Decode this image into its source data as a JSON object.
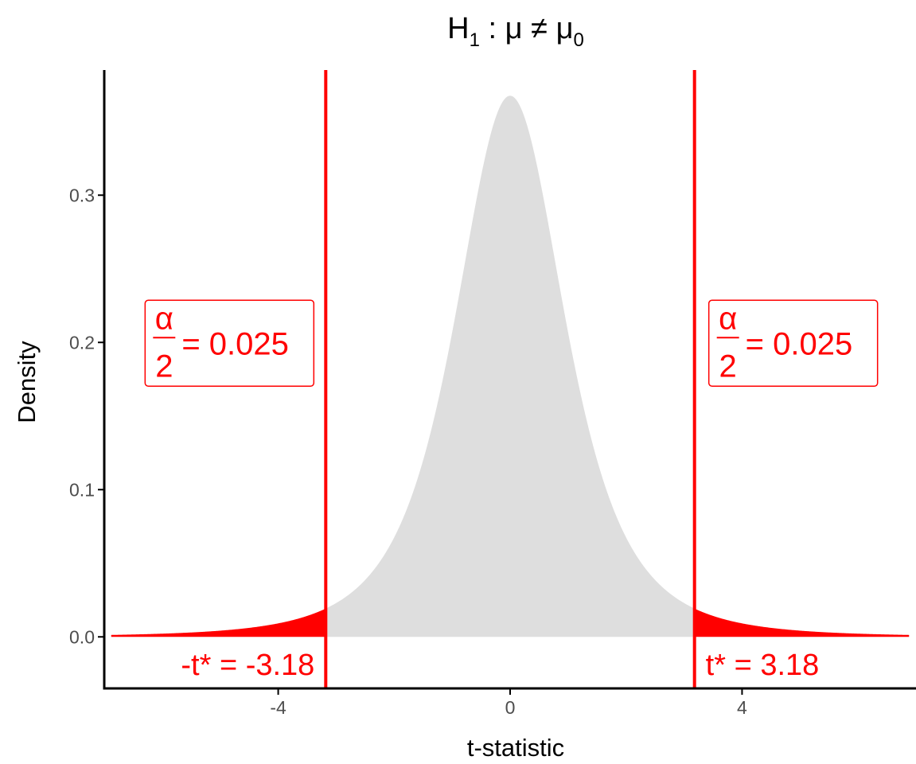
{
  "chart_data": {
    "type": "area",
    "distribution": "t",
    "df": 3,
    "title": {
      "base": "H",
      "base_sub": "1",
      "sep": " : ",
      "mu": "μ",
      "neq": " ≠ ",
      "mu2": "μ",
      "mu2_sub": "0"
    },
    "xlabel": "t-statistic",
    "ylabel": "Density",
    "xlim": [
      -7,
      7
    ],
    "ylim": [
      -0.035,
      0.385
    ],
    "x_ticks": [
      -4,
      0,
      4
    ],
    "x_tick_labels": [
      "-4",
      "0",
      "4"
    ],
    "y_ticks": [
      0.0,
      0.1,
      0.2,
      0.3
    ],
    "y_tick_labels": [
      "0.0",
      "0.1",
      "0.2",
      "0.3"
    ],
    "grid": false,
    "critical_values": [
      -3.18,
      3.18
    ],
    "critical_labels": {
      "left": "-t* = -3.18",
      "right": "t* = 3.18"
    },
    "alpha_annotation": {
      "numerator": "α",
      "denominator": "2",
      "value": "= 0.025",
      "y": 0.2
    },
    "colors": {
      "density_fill": "#dedede",
      "rejection": "#ff0000",
      "axis": "#000000",
      "tick_text": "#4d4d4d"
    }
  }
}
